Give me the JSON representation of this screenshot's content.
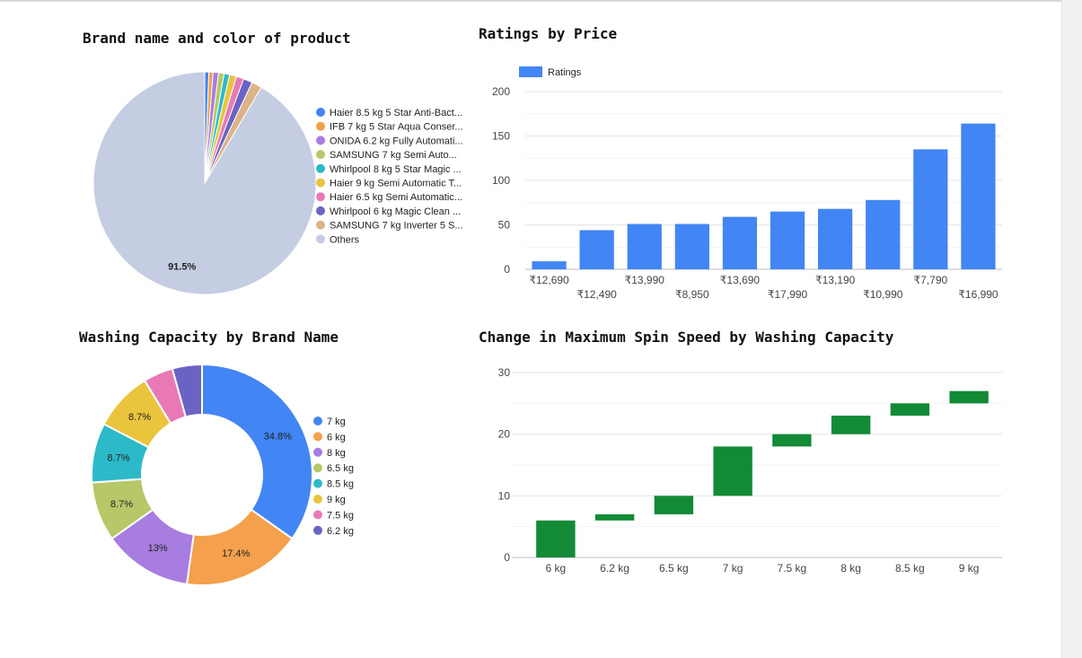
{
  "chart_data": [
    {
      "type": "pie",
      "title": "Brand name and color of product",
      "legend_position": "right",
      "slices": [
        {
          "label": "Haier 8.5 kg 5 Star Anti-Bact...",
          "value": 0.6,
          "color": "#4285f4"
        },
        {
          "label": "IFB 7 kg 5 Star Aqua Conser...",
          "value": 0.6,
          "color": "#f4a04c"
        },
        {
          "label": "ONIDA 6.2 kg Fully Automati...",
          "value": 0.8,
          "color": "#a77de0"
        },
        {
          "label": "SAMSUNG 7 kg Semi Auto...",
          "value": 0.8,
          "color": "#b6c867"
        },
        {
          "label": "Whirlpool 8 kg 5 Star Magic ...",
          "value": 0.8,
          "color": "#2cbac8"
        },
        {
          "label": "Haier 9 kg Semi Automatic T...",
          "value": 1.0,
          "color": "#ebc43e"
        },
        {
          "label": "Haier 6.5 kg Semi Automatic...",
          "value": 1.1,
          "color": "#e879b6"
        },
        {
          "label": "Whirlpool 6 kg Magic Clean ...",
          "value": 1.3,
          "color": "#6a63c3"
        },
        {
          "label": "SAMSUNG 7 kg Inverter 5 S...",
          "value": 1.5,
          "color": "#dcb387"
        },
        {
          "label": "Others",
          "value": 91.5,
          "color": "#c5cde3",
          "display": "91.5%"
        }
      ]
    },
    {
      "type": "bar",
      "title": "Ratings by Price",
      "legend_position": "top-left",
      "series": [
        {
          "name": "Ratings",
          "color": "#4285f4",
          "values": [
            9,
            44,
            51,
            51,
            59,
            65,
            68,
            78,
            135,
            164
          ]
        }
      ],
      "categories": [
        "₹12,690",
        "₹12,490",
        "₹13,990",
        "₹8,950",
        "₹13,690",
        "₹17,990",
        "₹13,190",
        "₹10,990",
        "₹7,790",
        "₹16,990"
      ],
      "ylim": [
        0,
        200
      ],
      "yticks": [
        "0",
        "50",
        "100",
        "150",
        "200"
      ],
      "grid": true
    },
    {
      "type": "pie",
      "donut": true,
      "title": "Washing Capacity by Brand Name",
      "legend_position": "right",
      "slices": [
        {
          "label": "7 kg",
          "value": 34.8,
          "color": "#4285f4",
          "display": "34.8%"
        },
        {
          "label": "6 kg",
          "value": 17.4,
          "color": "#f4a04c",
          "display": "17.4%"
        },
        {
          "label": "8 kg",
          "value": 13.0,
          "color": "#a77de0",
          "display": "13%"
        },
        {
          "label": "6.5 kg",
          "value": 8.7,
          "color": "#b6c867",
          "display": "8.7%"
        },
        {
          "label": "8.5 kg",
          "value": 8.7,
          "color": "#2cbac8",
          "display": "8.7%"
        },
        {
          "label": "9 kg",
          "value": 8.7,
          "color": "#ebc43e",
          "display": "8.7%"
        },
        {
          "label": "7.5 kg",
          "value": 4.35,
          "color": "#e879b6"
        },
        {
          "label": "6.2 kg",
          "value": 4.35,
          "color": "#6a63c3"
        }
      ]
    },
    {
      "type": "bar",
      "subtype": "waterfall",
      "title": "Change in Maximum Spin Speed by Washing Capacity",
      "color": "#138a36",
      "categories": [
        "6 kg",
        "6.2 kg",
        "6.5 kg",
        "7 kg",
        "7.5 kg",
        "8 kg",
        "8.5 kg",
        "9 kg"
      ],
      "ranges": [
        [
          0,
          6
        ],
        [
          6,
          7
        ],
        [
          7,
          10
        ],
        [
          10,
          18
        ],
        [
          18,
          20
        ],
        [
          20,
          23
        ],
        [
          23,
          25
        ],
        [
          25,
          27
        ]
      ],
      "ylim": [
        0,
        30
      ],
      "yticks": [
        "0",
        "10",
        "20",
        "30"
      ],
      "grid": true
    }
  ]
}
